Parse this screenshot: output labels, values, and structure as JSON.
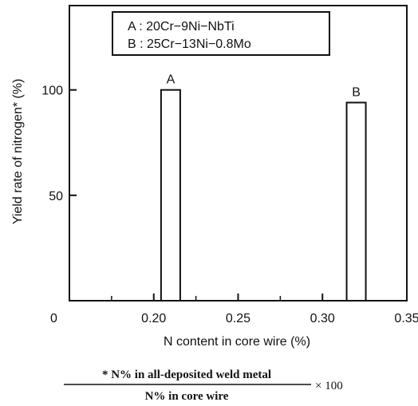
{
  "chart_data": {
    "type": "bar",
    "x": [
      0.21,
      0.32
    ],
    "values": [
      100,
      94
    ],
    "bar_labels": [
      "A",
      "B"
    ],
    "legend": [
      "A : 20Cr−9Ni−NbTi",
      "B : 25Cr−13Ni−0.8Mo"
    ],
    "xlabel": "N content in core wire (%)",
    "ylabel": "Yield rate of nitrogen* (%)",
    "xlim": [
      0.15,
      0.35
    ],
    "ylim": [
      0,
      140
    ],
    "x_ticks": [
      "0.20",
      "0.25",
      "0.30",
      "0.35"
    ],
    "x_origin_label": "0",
    "y_ticks": [
      "50",
      "100"
    ],
    "grid": false,
    "legend_position": "top-center",
    "footnote": {
      "numerator": "* N% in all-deposited weld metal",
      "denominator": "N% in core wire",
      "multiplier": "× 100"
    }
  }
}
